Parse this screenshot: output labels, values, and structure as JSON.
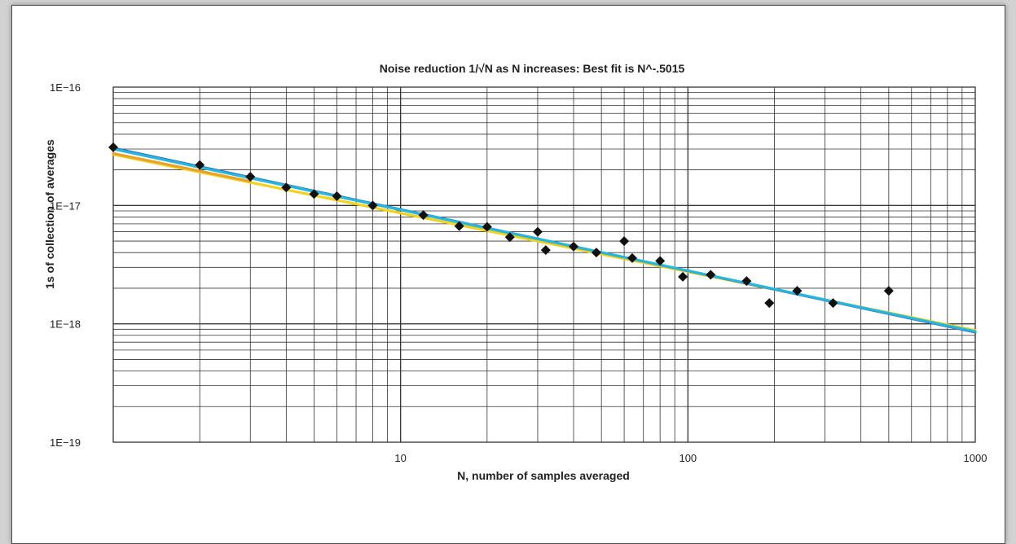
{
  "chart_data": {
    "type": "scatter",
    "title": "Noise reduction 1/√N as N increases: Best fit is N^-.5015",
    "xlabel": "N, number of samples averaged",
    "ylabel": "1s of collection of averages",
    "xscale": "log",
    "yscale": "log",
    "xlim": [
      1,
      1000
    ],
    "ylim": [
      1e-19,
      1e-16
    ],
    "grid": true,
    "x_tick_labels": [
      {
        "value": 10,
        "label": "10"
      },
      {
        "value": 100,
        "label": "100"
      },
      {
        "value": 1000,
        "label": "1000"
      }
    ],
    "y_tick_labels": [
      {
        "value": 1e-16,
        "label": "1E−16"
      },
      {
        "value": 1e-17,
        "label": "1E−17"
      },
      {
        "value": 1e-18,
        "label": "1E−18"
      },
      {
        "value": 1e-19,
        "label": "1E−19"
      }
    ],
    "points": [
      {
        "x": 1,
        "y": 3.1e-17
      },
      {
        "x": 2,
        "y": 2.2e-17
      },
      {
        "x": 3,
        "y": 1.75e-17
      },
      {
        "x": 4,
        "y": 1.42e-17
      },
      {
        "x": 5,
        "y": 1.25e-17
      },
      {
        "x": 6,
        "y": 1.2e-17
      },
      {
        "x": 8,
        "y": 1e-17
      },
      {
        "x": 12,
        "y": 8.3e-18
      },
      {
        "x": 16,
        "y": 6.7e-18
      },
      {
        "x": 20,
        "y": 6.6e-18
      },
      {
        "x": 24,
        "y": 5.4e-18
      },
      {
        "x": 30,
        "y": 6e-18
      },
      {
        "x": 32,
        "y": 4.2e-18
      },
      {
        "x": 40,
        "y": 4.5e-18
      },
      {
        "x": 48,
        "y": 4e-18
      },
      {
        "x": 60,
        "y": 5e-18
      },
      {
        "x": 64,
        "y": 3.6e-18
      },
      {
        "x": 80,
        "y": 3.4e-18
      },
      {
        "x": 96,
        "y": 2.5e-18
      },
      {
        "x": 120,
        "y": 2.6e-18
      },
      {
        "x": 160,
        "y": 2.3e-18
      },
      {
        "x": 192,
        "y": 1.5e-18
      },
      {
        "x": 240,
        "y": 1.9e-18
      },
      {
        "x": 320,
        "y": 1.5e-18
      },
      {
        "x": 500,
        "y": 1.9e-18
      }
    ],
    "fit_lines": [
      {
        "color": "#f2d21b",
        "x": [
          1,
          1000
        ],
        "y": [
          2.7e-17,
          8.8e-19
        ]
      },
      {
        "color": "#e8a42a",
        "x": [
          1,
          3
        ],
        "y": [
          2.75e-17,
          1.6e-17
        ]
      },
      {
        "color": "#2c63c4",
        "x": [
          1,
          1000
        ],
        "y": [
          3.05e-17,
          8.5e-19
        ]
      },
      {
        "color": "#27b6dd",
        "x": [
          1,
          1000
        ],
        "y": [
          3e-17,
          8.6e-19
        ]
      }
    ],
    "marker_color": "#111111",
    "grid_color": "#333333"
  }
}
